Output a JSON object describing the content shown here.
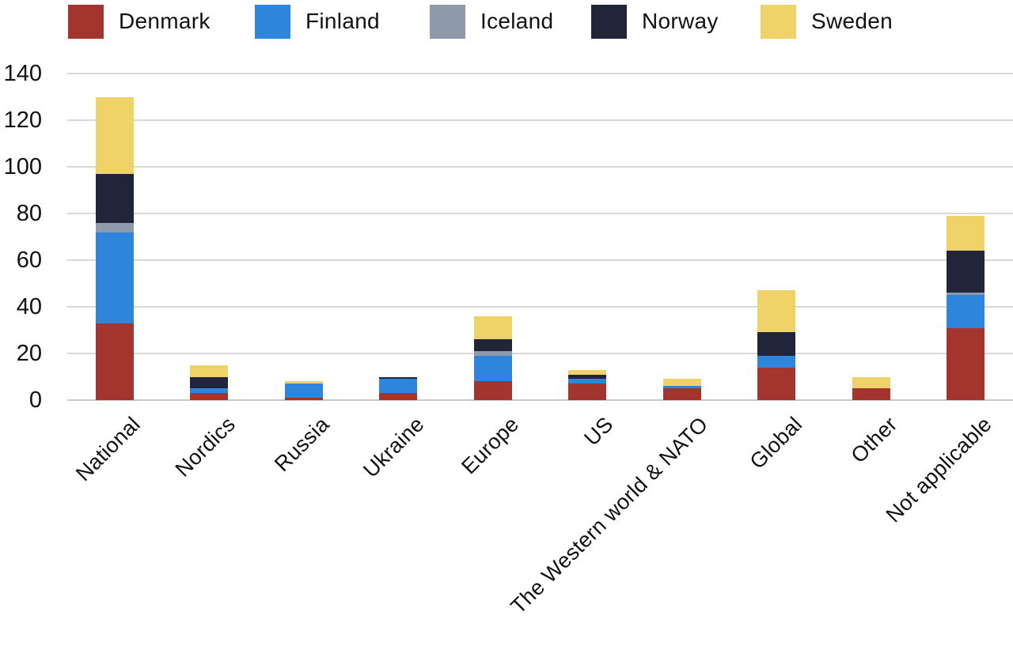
{
  "chart_data": {
    "type": "bar",
    "stacked": true,
    "title": "",
    "xlabel": "",
    "ylabel": "",
    "grid": true,
    "legend_position": "top",
    "ylim": [
      0,
      140
    ],
    "y_tick_step": 20,
    "categories": [
      "National",
      "Nordics",
      "Russia",
      "Ukraine",
      "Europe",
      "US",
      "The Western world & NATO",
      "Global",
      "Other",
      "Not applicable"
    ],
    "series": [
      {
        "name": "Denmark",
        "color": "#a3342e",
        "values": [
          33,
          3,
          1,
          3,
          8,
          7,
          5,
          14,
          5,
          31
        ]
      },
      {
        "name": "Finland",
        "color": "#2e86dc",
        "values": [
          39,
          2,
          6,
          6,
          11,
          2,
          1,
          5,
          0,
          14
        ]
      },
      {
        "name": "Iceland",
        "color": "#8e99a9",
        "values": [
          4,
          0,
          0,
          0,
          2,
          0,
          0,
          0,
          0,
          1
        ]
      },
      {
        "name": "Norway",
        "color": "#222539",
        "values": [
          21,
          5,
          0,
          1,
          5,
          2,
          0,
          10,
          0,
          18
        ]
      },
      {
        "name": "Sweden",
        "color": "#efd369",
        "values": [
          33,
          5,
          1,
          0,
          10,
          2,
          3,
          18,
          5,
          15
        ]
      }
    ]
  },
  "y_axis": {
    "ticks": [
      140,
      120,
      100,
      80,
      60,
      40,
      20,
      0
    ]
  },
  "colors": {
    "gridline": "#d8d8d8",
    "baseline": "#c9c9c9",
    "text": "#111111",
    "background": "#ffffff"
  }
}
